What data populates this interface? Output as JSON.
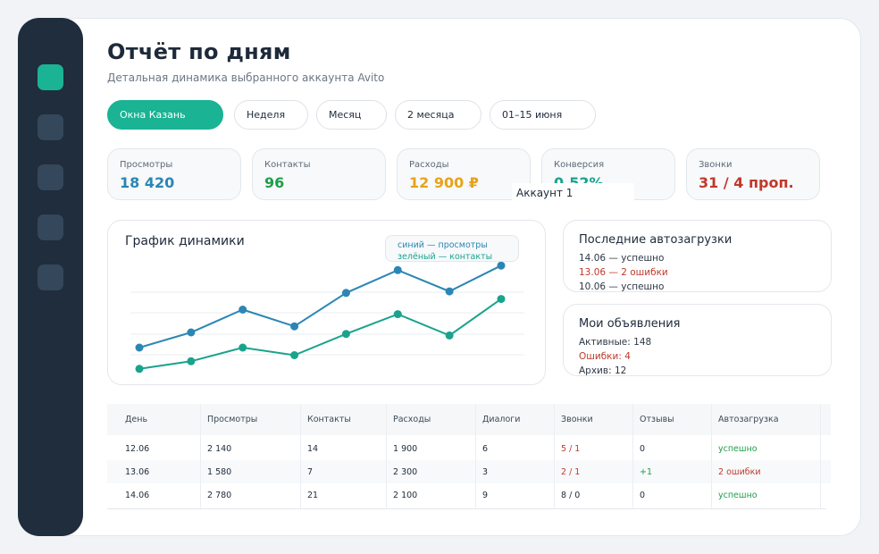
{
  "header": {
    "title": "Отчёт по дням",
    "subtitle": "Детальная динамика выбранного аккаунта Avito"
  },
  "filters": [
    {
      "label": "Окна Казань",
      "active": true
    },
    {
      "label": "Неделя",
      "active": false
    },
    {
      "label": "Месяц",
      "active": false
    },
    {
      "label": "2 месяца",
      "active": false
    },
    {
      "label": "01–15 июня",
      "active": false
    }
  ],
  "stats": [
    {
      "label": "Просмотры",
      "value": "18 420",
      "color": "#2b86b4"
    },
    {
      "label": "Контакты",
      "value": "96",
      "color": "#1e9e4a"
    },
    {
      "label": "Расходы",
      "value": "12 900 ₽",
      "color": "#e9a21a"
    },
    {
      "label": "Конверсия",
      "value": "0,52%",
      "color": "#1aa38c"
    },
    {
      "label": "Звонки",
      "value": "31 / 4 проп.",
      "color": "#c0392b"
    }
  ],
  "tooltip": "Аккаунт 1",
  "chart": {
    "title": "График динамики",
    "legend_blue": "синий — просмотры",
    "legend_green": "зелёный — контакты"
  },
  "chart_data": {
    "type": "line",
    "grid": true,
    "series": [
      {
        "color": "#2b86b4",
        "values": [
          2.0,
          3.0,
          4.5,
          3.4,
          5.6,
          7.1,
          5.7,
          7.4
        ]
      },
      {
        "color": "#1aa38c",
        "values": [
          0.6,
          1.1,
          2.0,
          1.5,
          2.9,
          4.2,
          2.8,
          5.2
        ]
      }
    ],
    "ylim": [
      0,
      10
    ]
  },
  "autoloads": {
    "title": "Последние автозагрузки",
    "items": [
      {
        "text": "14.06 — успешно",
        "status": "ok"
      },
      {
        "text": "13.06 — 2 ошибки",
        "status": "error"
      },
      {
        "text": "10.06 — успешно",
        "status": "ok"
      }
    ]
  },
  "ads": {
    "title": "Мои объявления",
    "items": [
      {
        "text": "Активные: 148",
        "status": "ok"
      },
      {
        "text": "Ошибки: 4",
        "status": "error"
      },
      {
        "text": "Архив: 12",
        "status": "ok"
      }
    ]
  },
  "table": {
    "columns": [
      "День",
      "Просмотры",
      "Контакты",
      "Расходы",
      "Диалоги",
      "Звонки",
      "Отзывы",
      "Автозагрузка"
    ],
    "rows": [
      [
        "12.06",
        "2 140",
        "14",
        "1 900",
        "6",
        "5 / 1",
        "0",
        "успешно"
      ],
      [
        "13.06",
        "1 580",
        "7",
        "2 300",
        "3",
        "2 / 1",
        "+1",
        "2 ошибки"
      ],
      [
        "14.06",
        "2 780",
        "21",
        "2 100",
        "9",
        "8 / 0",
        "0",
        "успешно"
      ]
    ]
  }
}
